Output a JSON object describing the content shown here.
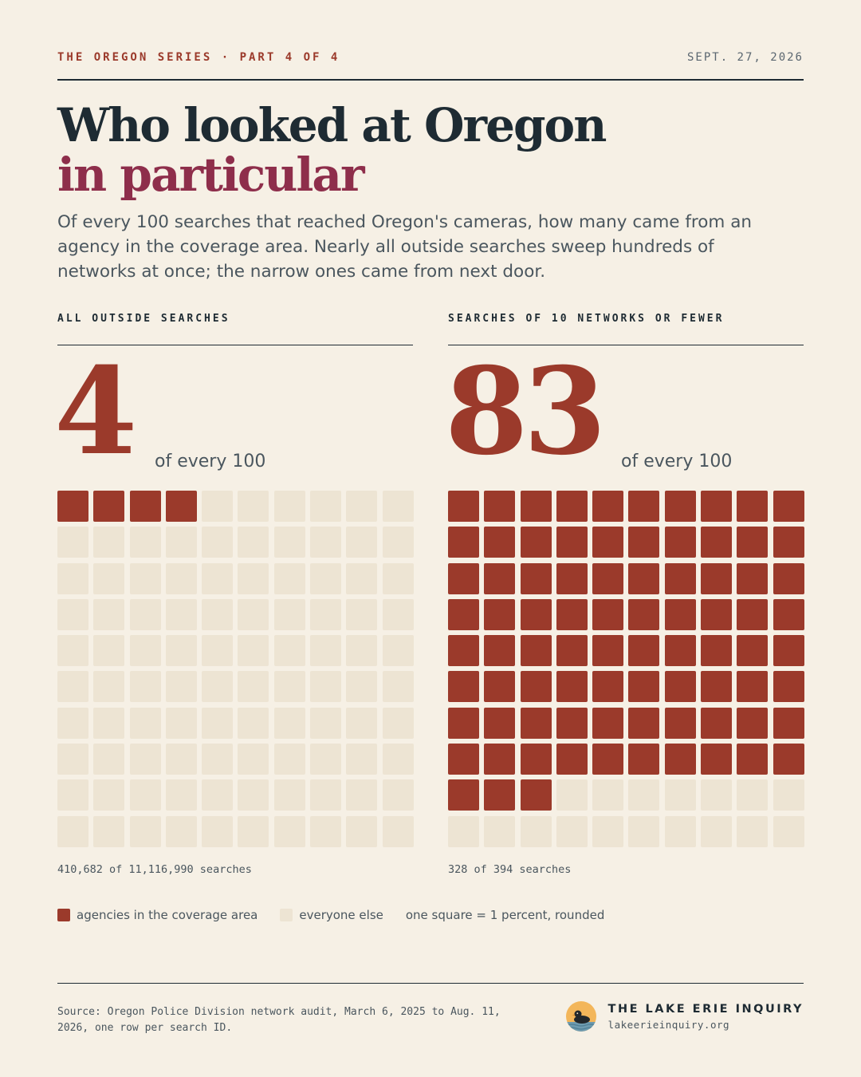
{
  "header": {
    "kicker": "THE OREGON SERIES · PART 4 OF 4",
    "date": "SEPT. 27, 2026"
  },
  "title": {
    "line1": "Who looked at Oregon",
    "line2": "in particular"
  },
  "subtitle": "Of every 100 searches that reached Oregon's cameras, how many came from an agency in the coverage area. Nearly all outside searches sweep hundreds of networks at once; the narrow ones came from next door.",
  "chart_data": [
    {
      "type": "waffle",
      "title": "ALL OUTSIDE SEARCHES",
      "value": 4,
      "total": 100,
      "value_suffix": "of every 100",
      "count_label": "410,682 of 11,116,990 searches",
      "numerator": 410682,
      "denominator": 11116990
    },
    {
      "type": "waffle",
      "title": "SEARCHES OF 10 NETWORKS OR FEWER",
      "value": 83,
      "total": 100,
      "value_suffix": "of every 100",
      "count_label": "328 of 394 searches",
      "numerator": 328,
      "denominator": 394
    }
  ],
  "legend": {
    "on_label": "agencies in the coverage area",
    "off_label": "everyone else",
    "note": "one square = 1 percent, rounded"
  },
  "colors": {
    "highlight": "#9b3a2b",
    "empty": "#ede4d3",
    "accent_title": "#8e2e4b"
  },
  "footer": {
    "source": "Source: Oregon Police Division network audit, March 6, 2025 to Aug. 11, 2026, one row per search ID.",
    "brand_name": "THE LAKE ERIE INQUIRY",
    "brand_url": "lakeerieinquiry.org",
    "logo_icon": "duck-on-lake-icon"
  }
}
